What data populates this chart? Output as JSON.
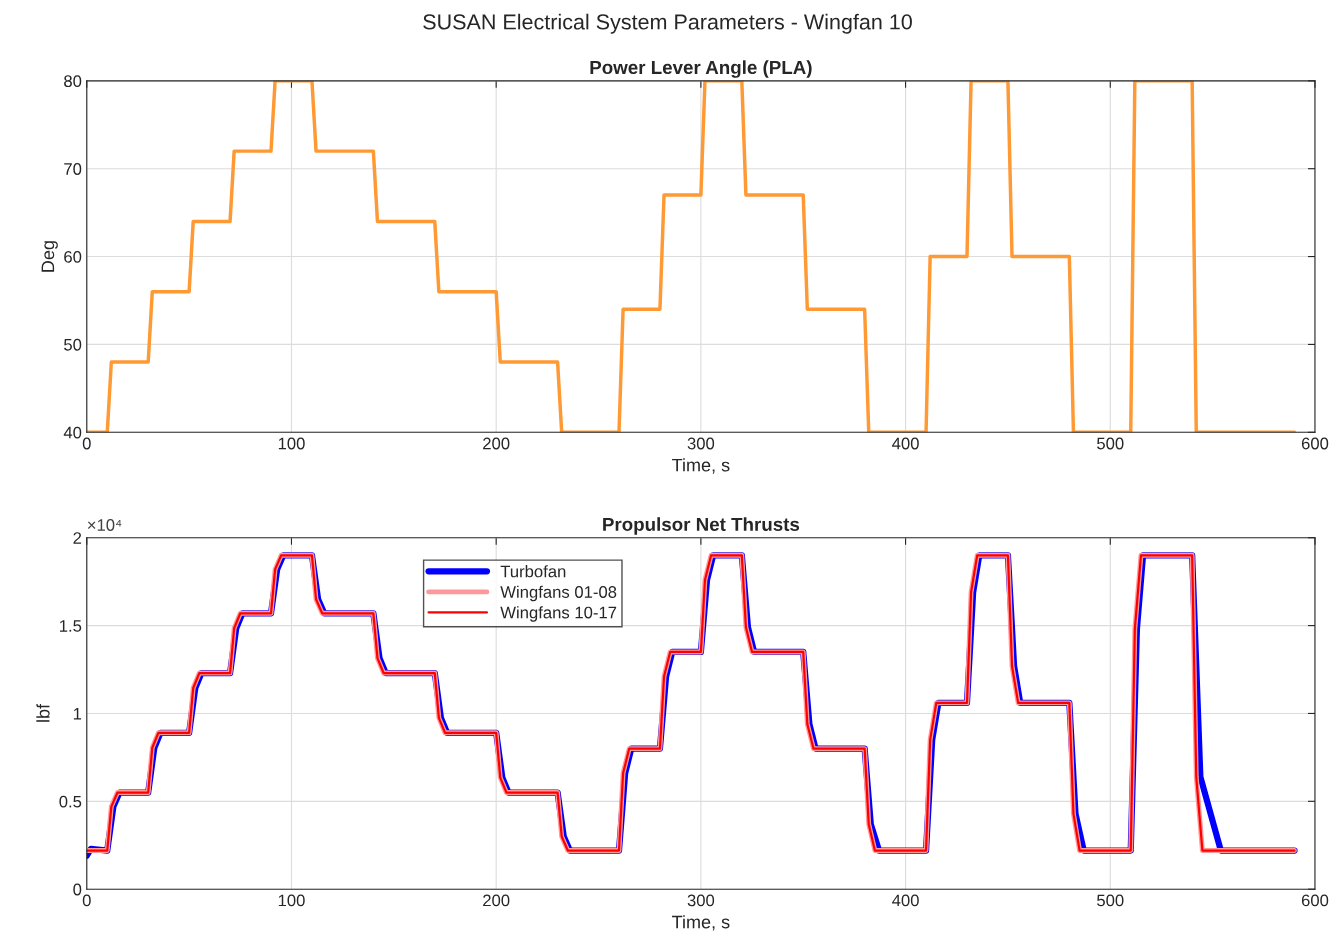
{
  "chart_data": [
    {
      "type": "line",
      "title": "Power Lever Angle (PLA)",
      "xlabel": "Time, s",
      "ylabel": "Deg",
      "annotations": [
        "SUSAN Electrical System Parameters - Wingfan 10"
      ],
      "xlim": [
        0,
        600
      ],
      "xticks": [
        0,
        100,
        200,
        300,
        400,
        500,
        600
      ],
      "ylim": [
        40,
        80
      ],
      "yticks": [
        40,
        50,
        60,
        70,
        80
      ],
      "grid": true,
      "legend": false,
      "series": [
        {
          "color": "#ff9933",
          "x": [
            0,
            10,
            12,
            30,
            32,
            50,
            52,
            70,
            72,
            90,
            92,
            110,
            112,
            140,
            142,
            170,
            172,
            200,
            202,
            230,
            232,
            260,
            262,
            280,
            282,
            300,
            302,
            320,
            322,
            350,
            352,
            380,
            382,
            410,
            412,
            430,
            432,
            450,
            452,
            480,
            482,
            510,
            512,
            540,
            542,
            590
          ],
          "values": [
            40,
            40,
            48,
            48,
            56,
            56,
            64,
            64,
            72,
            72,
            80,
            80,
            72,
            72,
            64,
            64,
            56,
            56,
            48,
            48,
            40,
            40,
            54,
            54,
            67,
            67,
            80,
            80,
            67,
            67,
            54,
            54,
            40,
            40,
            60,
            60,
            80,
            80,
            60,
            60,
            40,
            40,
            80,
            80,
            40,
            40
          ]
        }
      ]
    },
    {
      "type": "line",
      "title": "Propulsor Net Thrusts",
      "xlabel": "Time, s",
      "ylabel": "lbf",
      "annotations": [
        "×10⁴"
      ],
      "xlim": [
        0,
        600
      ],
      "xticks": [
        0,
        100,
        200,
        300,
        400,
        500,
        600
      ],
      "ylim": [
        0,
        2
      ],
      "yticks": [
        0,
        0.5,
        1,
        1.5,
        2
      ],
      "grid": true,
      "legend": "top",
      "series": [
        {
          "name": "Turbofan",
          "color": "#0000ff",
          "x": [
            0,
            2,
            10,
            13,
            16,
            30,
            33,
            36,
            50,
            53,
            56,
            70,
            73,
            76,
            90,
            93,
            96,
            110,
            113,
            116,
            140,
            143,
            146,
            170,
            173,
            176,
            200,
            203,
            206,
            230,
            233,
            236,
            260,
            263,
            266,
            280,
            283,
            286,
            300,
            303,
            306,
            320,
            323,
            326,
            350,
            353,
            356,
            380,
            383,
            387,
            410,
            413,
            416,
            430,
            433,
            436,
            450,
            453,
            456,
            480,
            483,
            487,
            510,
            513,
            516,
            540,
            544,
            554,
            590
          ],
          "values": [
            0.19,
            0.23,
            0.22,
            0.47,
            0.55,
            0.55,
            0.805,
            0.89,
            0.89,
            1.145,
            1.23,
            1.23,
            1.485,
            1.57,
            1.57,
            1.82,
            1.9,
            1.9,
            1.65,
            1.57,
            1.57,
            1.315,
            1.23,
            1.23,
            0.975,
            0.89,
            0.89,
            0.635,
            0.55,
            0.55,
            0.3,
            0.22,
            0.22,
            0.66,
            0.8,
            0.8,
            1.21,
            1.35,
            1.35,
            1.76,
            1.9,
            1.9,
            1.49,
            1.35,
            1.35,
            0.94,
            0.8,
            0.8,
            0.37,
            0.22,
            0.22,
            0.85,
            1.06,
            1.06,
            1.69,
            1.9,
            1.9,
            1.27,
            1.06,
            1.06,
            0.43,
            0.22,
            0.22,
            1.48,
            1.9,
            1.9,
            0.64,
            0.22,
            0.22
          ]
        },
        {
          "name": "Wingfans 01-08",
          "color": "#ff9999",
          "x": [
            0,
            10,
            12,
            15,
            30,
            32,
            35,
            50,
            52,
            55,
            70,
            72,
            75,
            90,
            92,
            95,
            110,
            112,
            115,
            140,
            142,
            145,
            170,
            172,
            175,
            200,
            202,
            205,
            230,
            232,
            235,
            260,
            262,
            265,
            280,
            282,
            285,
            300,
            302,
            305,
            320,
            322,
            325,
            350,
            352,
            355,
            380,
            382,
            385,
            410,
            412,
            415,
            430,
            432,
            435,
            450,
            452,
            455,
            480,
            482,
            485,
            510,
            512,
            515,
            540,
            542,
            545,
            590
          ],
          "values": [
            0.22,
            0.22,
            0.47,
            0.55,
            0.55,
            0.805,
            0.89,
            0.89,
            1.145,
            1.23,
            1.23,
            1.485,
            1.57,
            1.57,
            1.82,
            1.9,
            1.9,
            1.65,
            1.57,
            1.57,
            1.315,
            1.23,
            1.23,
            0.975,
            0.89,
            0.89,
            0.635,
            0.55,
            0.55,
            0.3,
            0.22,
            0.22,
            0.66,
            0.8,
            0.8,
            1.21,
            1.35,
            1.35,
            1.76,
            1.9,
            1.9,
            1.49,
            1.35,
            1.35,
            0.94,
            0.8,
            0.8,
            0.37,
            0.22,
            0.22,
            0.85,
            1.06,
            1.06,
            1.69,
            1.9,
            1.9,
            1.27,
            1.06,
            1.06,
            0.43,
            0.22,
            0.22,
            1.48,
            1.9,
            1.9,
            0.64,
            0.22,
            0.22
          ]
        },
        {
          "name": "Wingfans 10-17",
          "color": "#ff0000",
          "x": [
            0,
            10,
            12,
            15,
            30,
            32,
            35,
            50,
            52,
            55,
            70,
            72,
            75,
            90,
            92,
            95,
            110,
            112,
            115,
            140,
            142,
            145,
            170,
            172,
            175,
            200,
            202,
            205,
            230,
            232,
            235,
            260,
            262,
            265,
            280,
            282,
            285,
            300,
            302,
            305,
            320,
            322,
            325,
            350,
            352,
            355,
            380,
            382,
            385,
            410,
            412,
            415,
            430,
            432,
            435,
            450,
            452,
            455,
            480,
            482,
            485,
            510,
            512,
            515,
            540,
            542,
            545,
            590
          ],
          "values": [
            0.22,
            0.22,
            0.47,
            0.55,
            0.55,
            0.805,
            0.89,
            0.89,
            1.145,
            1.23,
            1.23,
            1.485,
            1.57,
            1.57,
            1.82,
            1.9,
            1.9,
            1.65,
            1.57,
            1.57,
            1.315,
            1.23,
            1.23,
            0.975,
            0.89,
            0.89,
            0.635,
            0.55,
            0.55,
            0.3,
            0.22,
            0.22,
            0.66,
            0.8,
            0.8,
            1.21,
            1.35,
            1.35,
            1.76,
            1.9,
            1.9,
            1.49,
            1.35,
            1.35,
            0.94,
            0.8,
            0.8,
            0.37,
            0.22,
            0.22,
            0.85,
            1.06,
            1.06,
            1.69,
            1.9,
            1.9,
            1.27,
            1.06,
            1.06,
            0.43,
            0.22,
            0.22,
            1.48,
            1.9,
            1.9,
            0.64,
            0.22,
            0.22
          ]
        }
      ]
    }
  ]
}
